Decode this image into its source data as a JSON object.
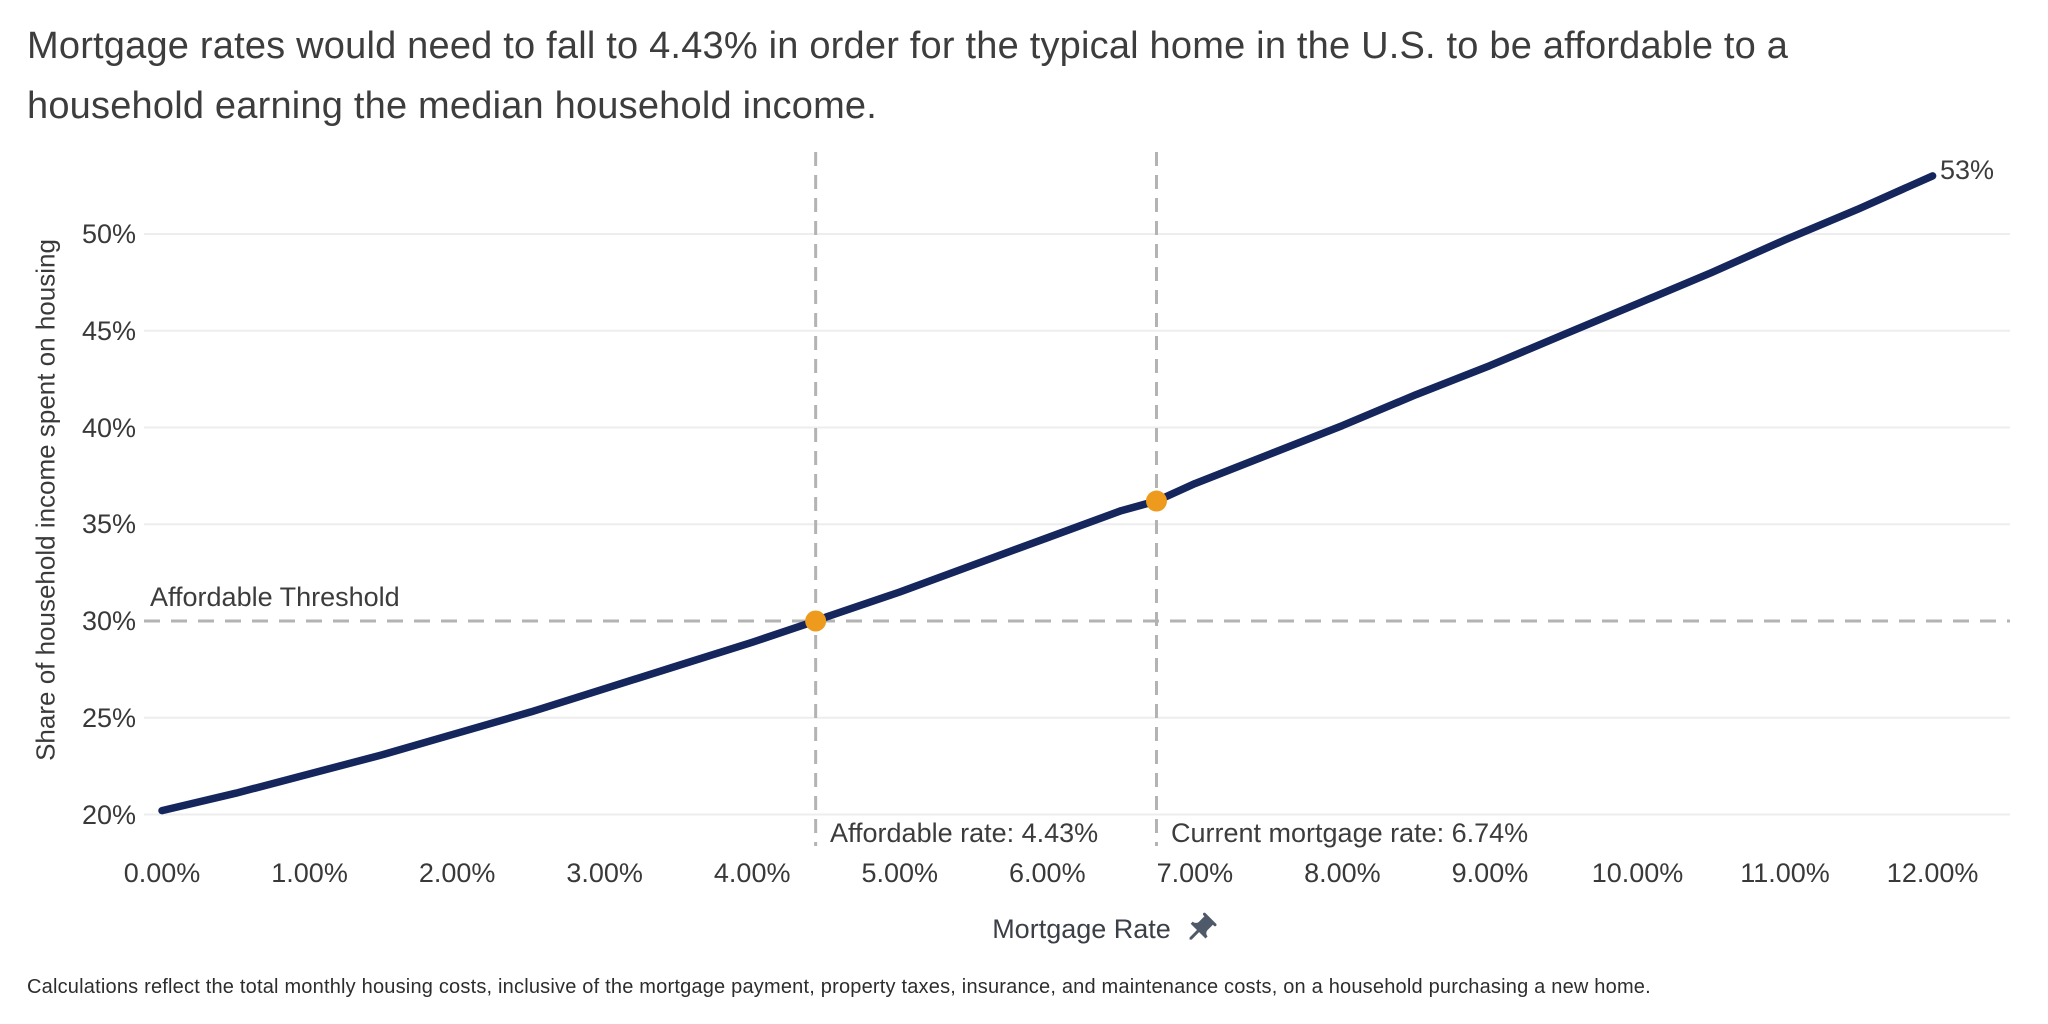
{
  "chart_data": {
    "type": "line",
    "title": "Mortgage rates would need to fall to 4.43% in order for the typical home in the U.S. to be affordable to a household earning the median household income.",
    "footnote": "Calculations reflect the total monthly housing costs, inclusive of the mortgage payment, property taxes, insurance, and maintenance costs, on a household purchasing a new home.",
    "end_label": "53%",
    "legend": "none",
    "grid": "horizontal-only",
    "x_axis": {
      "label": "Mortgage Rate",
      "icon": "pushpin-icon",
      "tick_values": [
        0,
        1,
        2,
        3,
        4,
        5,
        6,
        7,
        8,
        9,
        10,
        11,
        12
      ],
      "tick_labels": [
        "0.00%",
        "1.00%",
        "2.00%",
        "3.00%",
        "4.00%",
        "5.00%",
        "6.00%",
        "7.00%",
        "8.00%",
        "9.00%",
        "10.00%",
        "11.00%",
        "12.00%"
      ],
      "range": [
        0,
        12
      ]
    },
    "y_axis": {
      "label": "Share of household income spent on housing",
      "tick_values": [
        20,
        25,
        30,
        35,
        40,
        45,
        50
      ],
      "tick_labels": [
        "20%",
        "25%",
        "30%",
        "35%",
        "40%",
        "45%",
        "50%"
      ],
      "range": [
        20,
        53
      ]
    },
    "threshold": {
      "value": 30,
      "label": "Affordable Threshold"
    },
    "markers": [
      {
        "name": "affordable-rate",
        "rate": 4.43,
        "share": 30.0,
        "label": "Affordable rate: 4.43%"
      },
      {
        "name": "current-mortgage-rate",
        "rate": 6.74,
        "share": 36.2,
        "label": "Current mortgage rate: 6.74%"
      }
    ],
    "series": [
      {
        "name": "Share of household income spent on housing vs mortgage rate",
        "points": [
          [
            0,
            20.2
          ],
          [
            0.5,
            21.1
          ],
          [
            1,
            22.1
          ],
          [
            1.5,
            23.1
          ],
          [
            2,
            24.2
          ],
          [
            2.5,
            25.3
          ],
          [
            3,
            26.5
          ],
          [
            3.5,
            27.7
          ],
          [
            4,
            28.9
          ],
          [
            4.43,
            30.0
          ],
          [
            4.5,
            30.2
          ],
          [
            5,
            31.5
          ],
          [
            5.5,
            32.9
          ],
          [
            6,
            34.3
          ],
          [
            6.5,
            35.7
          ],
          [
            6.74,
            36.2
          ],
          [
            7,
            37.1
          ],
          [
            7.5,
            38.6
          ],
          [
            8,
            40.1
          ],
          [
            8.5,
            41.7
          ],
          [
            9,
            43.2
          ],
          [
            9.5,
            44.8
          ],
          [
            10,
            46.4
          ],
          [
            10.5,
            48.0
          ],
          [
            11,
            49.7
          ],
          [
            11.5,
            51.3
          ],
          [
            12,
            53.0
          ]
        ]
      }
    ],
    "colors": {
      "line": "#15265d",
      "marker": "#ed9a1d",
      "dashed": "#b3b3b3",
      "gridline": "#ededed",
      "pin": "#4e5a6a"
    }
  }
}
